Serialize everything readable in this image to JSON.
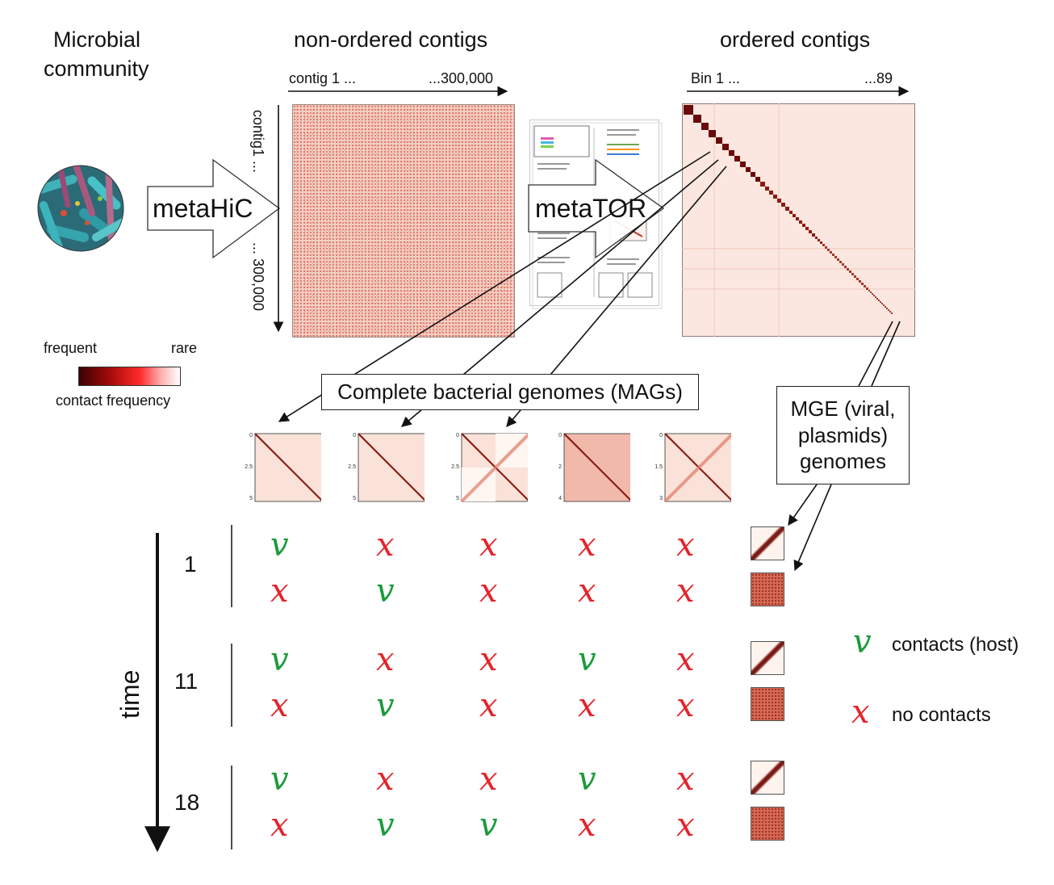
{
  "community": {
    "line1": "Microbial",
    "line2": "community"
  },
  "arrow1_label": "metaHiC",
  "arrow2_label": "metaTOR",
  "matrix1": {
    "title": "non-ordered contigs",
    "top_left": "contig 1 ...",
    "top_right": "...300,000",
    "side_top": "contig1 ...",
    "side_bottom": "... 300,000"
  },
  "matrix2": {
    "title": "ordered contigs",
    "top_left": "Bin 1 ...",
    "top_right": "...89"
  },
  "colorbar": {
    "left": "frequent",
    "right": "rare",
    "caption": "contact frequency",
    "dark": "#3a0303",
    "mid": "#ff2a2a",
    "light": "#ffffff"
  },
  "mags_label": "Complete bacterial genomes (MAGs)",
  "mge_label": {
    "line1": "MGE (viral,",
    "line2": "plasmids)",
    "line3": "genomes"
  },
  "minimaps": [
    {
      "ticks": [
        "0",
        "2.5",
        "5"
      ]
    },
    {
      "ticks": [
        "0",
        "2.5",
        "5"
      ]
    },
    {
      "ticks": [
        "0",
        "2.5",
        "5"
      ]
    },
    {
      "ticks": [
        "0",
        "2",
        "4"
      ]
    },
    {
      "ticks": [
        "0",
        "1.5",
        "3"
      ]
    }
  ],
  "time": {
    "axis_label": "time",
    "groups": [
      {
        "label": "1",
        "rows": [
          [
            "v",
            "x",
            "x",
            "x",
            "x"
          ],
          [
            "x",
            "v",
            "x",
            "x",
            "x"
          ]
        ]
      },
      {
        "label": "11",
        "rows": [
          [
            "v",
            "x",
            "x",
            "v",
            "x"
          ],
          [
            "x",
            "v",
            "x",
            "x",
            "x"
          ]
        ]
      },
      {
        "label": "18",
        "rows": [
          [
            "v",
            "x",
            "x",
            "v",
            "x"
          ],
          [
            "x",
            "v",
            "v",
            "x",
            "x"
          ]
        ]
      }
    ]
  },
  "symbols": {
    "check": "v",
    "cross": "x"
  },
  "legend": {
    "check_label": "contacts (host)",
    "cross_label": "no contacts"
  },
  "colors": {
    "check": "#1a9a3a",
    "cross": "#e4242b",
    "heatmap_bg": "#f6d9cf"
  }
}
